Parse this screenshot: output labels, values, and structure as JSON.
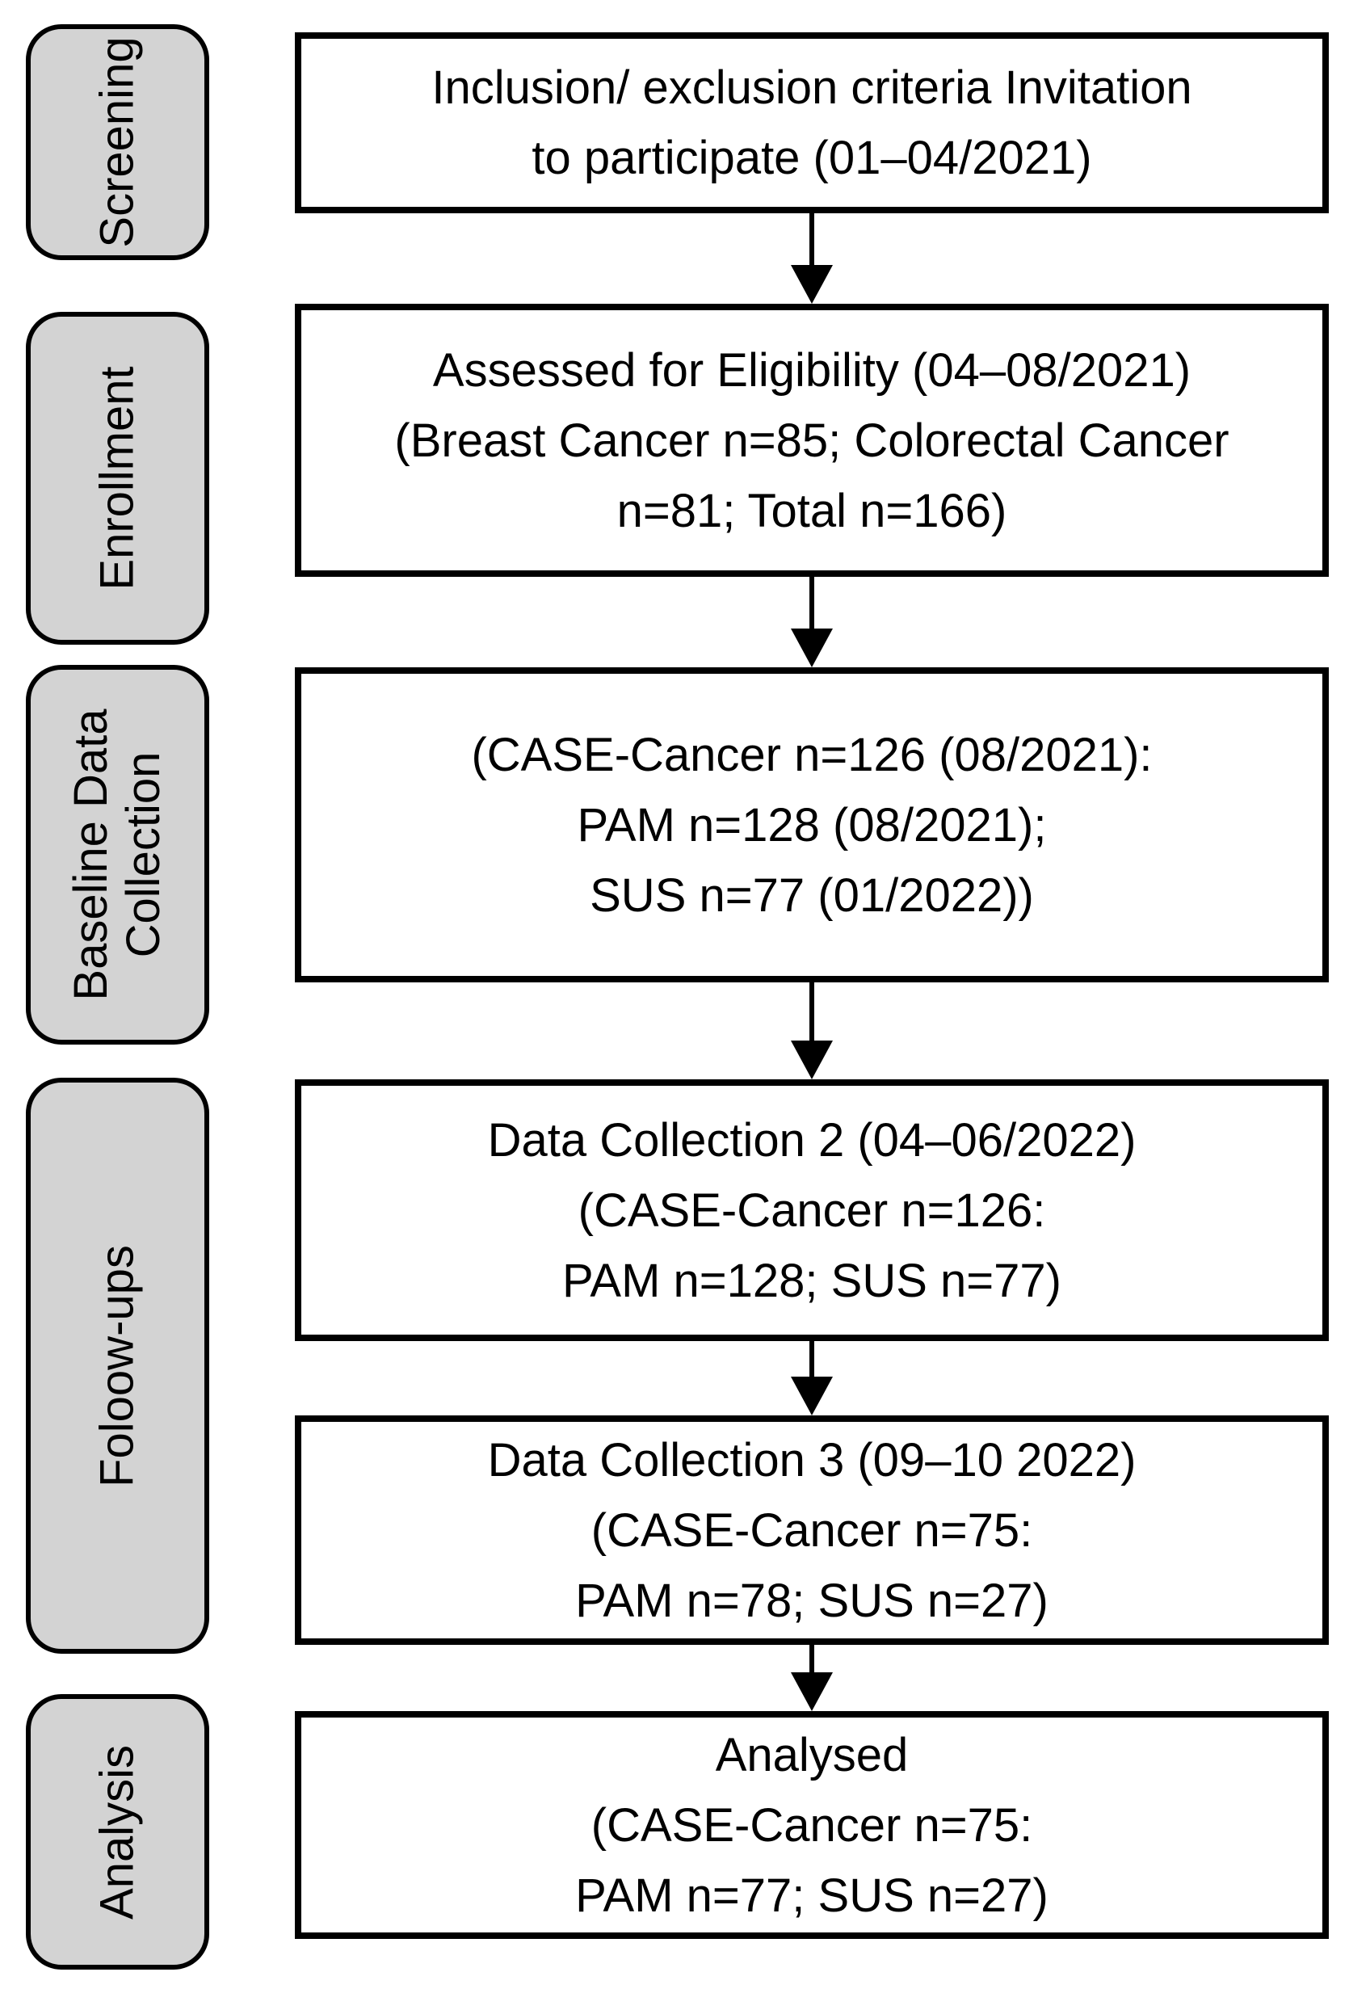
{
  "colors": {
    "stage_fill": "#d3d3d3",
    "stage_border": "#000000",
    "box_fill": "#ffffff",
    "box_border": "#000000",
    "arrow": "#000000"
  },
  "sidebar": {
    "items": [
      {
        "lines": [
          "Screening"
        ]
      },
      {
        "lines": [
          "Enrollment"
        ]
      },
      {
        "lines": [
          "Baseline Data",
          "Collection"
        ]
      },
      {
        "lines": [
          "Foloow-ups"
        ]
      },
      {
        "lines": [
          "Analysis"
        ]
      }
    ]
  },
  "flow": {
    "boxes": [
      {
        "lines": [
          "Inclusion/ exclusion criteria Invitation",
          "to participate (01–04/2021)"
        ]
      },
      {
        "lines": [
          "Assessed for Eligibility (04–08/2021)",
          "(Breast Cancer n=85; Colorectal Cancer",
          "n=81; Total n=166)"
        ]
      },
      {
        "lines": [
          "(CASE-Cancer n=126 (08/2021):",
          "PAM n=128 (08/2021);",
          "SUS n=77 (01/2022))"
        ]
      },
      {
        "lines": [
          "Data Collection 2 (04–06/2022)",
          "(CASE-Cancer n=126:",
          "PAM n=128; SUS n=77)"
        ]
      },
      {
        "lines": [
          "Data Collection 3 (09–10 2022)",
          "(CASE-Cancer n=75:",
          "PAM n=78; SUS n=27)"
        ]
      },
      {
        "lines": [
          "Analysed",
          "(CASE-Cancer n=75:",
          "PAM n=77; SUS n=27)"
        ]
      }
    ]
  }
}
